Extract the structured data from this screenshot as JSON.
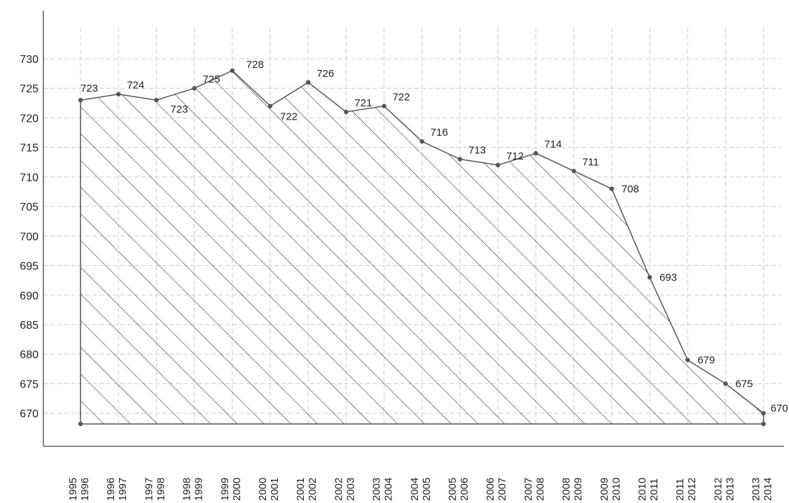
{
  "chart_data": {
    "type": "area",
    "title": "",
    "xlabel": "",
    "ylabel": "",
    "ylim": [
      667,
      730
    ],
    "yticks": [
      670,
      675,
      680,
      685,
      690,
      695,
      700,
      705,
      710,
      715,
      720,
      725,
      730
    ],
    "grid": true,
    "fill_pattern": "diagonal-hatch",
    "colors": {
      "line": "#555555",
      "hatch": "#333333",
      "grid": "#cccccc",
      "axis": "#444444"
    },
    "categories": [
      "1995 1996",
      "1996 1997",
      "1997 1998",
      "1998 1999",
      "1999 2000",
      "2000 2001",
      "2001 2002",
      "2002 2003",
      "2003 2004",
      "2004 2005",
      "2005 2006",
      "2006 2007",
      "2007 2008",
      "2008 2009",
      "2009 2010",
      "2010 2011",
      "2011 2012",
      "2012 2013",
      "2013 2014"
    ],
    "values": [
      723,
      724,
      723,
      725,
      728,
      722,
      726,
      721,
      722,
      716,
      713,
      712,
      714,
      711,
      708,
      693,
      679,
      675,
      670
    ]
  }
}
